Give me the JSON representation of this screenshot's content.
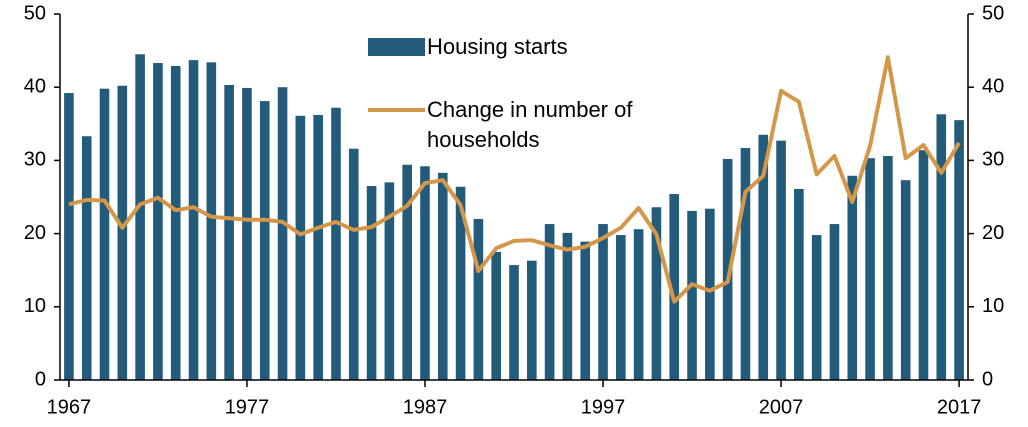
{
  "chart_data": {
    "type": "bar_line",
    "x": [
      1967,
      1968,
      1969,
      1970,
      1971,
      1972,
      1973,
      1974,
      1975,
      1976,
      1977,
      1978,
      1979,
      1980,
      1981,
      1982,
      1983,
      1984,
      1985,
      1986,
      1987,
      1988,
      1989,
      1990,
      1991,
      1992,
      1993,
      1994,
      1995,
      1996,
      1997,
      1998,
      1999,
      2000,
      2001,
      2002,
      2003,
      2004,
      2005,
      2006,
      2007,
      2008,
      2009,
      2010,
      2011,
      2012,
      2013,
      2014,
      2015,
      2016,
      2017
    ],
    "series": [
      {
        "name": "Housing starts",
        "color": "#235b7a",
        "type": "bar",
        "values": [
          39.2,
          33.3,
          39.8,
          40.2,
          44.5,
          43.3,
          42.9,
          43.7,
          43.4,
          40.3,
          39.9,
          38.1,
          40.0,
          36.1,
          36.2,
          37.2,
          31.6,
          26.5,
          27.0,
          29.4,
          29.2,
          28.3,
          26.4,
          22.0,
          17.5,
          15.7,
          16.3,
          21.3,
          20.1,
          18.9,
          21.3,
          19.8,
          20.6,
          23.6,
          25.4,
          23.1,
          23.4,
          30.2,
          31.7,
          33.5,
          32.7,
          26.1,
          19.8,
          21.3,
          27.9,
          30.3,
          30.6,
          27.3,
          31.4,
          36.3,
          35.5
        ]
      },
      {
        "name": "Change in number of households",
        "color": "#d4974a",
        "type": "line",
        "axis": "y2",
        "values": [
          24.0,
          24.6,
          24.5,
          20.8,
          24.0,
          24.9,
          23.2,
          23.6,
          22.3,
          22.1,
          21.9,
          21.9,
          21.6,
          19.9,
          20.8,
          21.6,
          20.5,
          20.9,
          22.3,
          23.8,
          26.9,
          27.3,
          23.9,
          14.9,
          18.0,
          19.0,
          19.1,
          18.4,
          17.8,
          18.2,
          19.4,
          20.8,
          23.5,
          19.9,
          10.7,
          13.1,
          12.2,
          13.4,
          25.7,
          27.9,
          39.5,
          38.0,
          28.1,
          30.6,
          24.3,
          32.0,
          44.1,
          30.3,
          32.1,
          28.3,
          32.4
        ]
      }
    ],
    "xlim": [
      1966.5,
      2017.5
    ],
    "xticks": [
      1967,
      1977,
      1987,
      1997,
      2007,
      2017
    ],
    "ylim": [
      0,
      50
    ],
    "yticks": [
      0,
      10,
      20,
      30,
      40,
      50
    ],
    "y2lim": [
      0,
      50
    ],
    "y2ticks": [
      0,
      10,
      20,
      30,
      40,
      50
    ]
  }
}
